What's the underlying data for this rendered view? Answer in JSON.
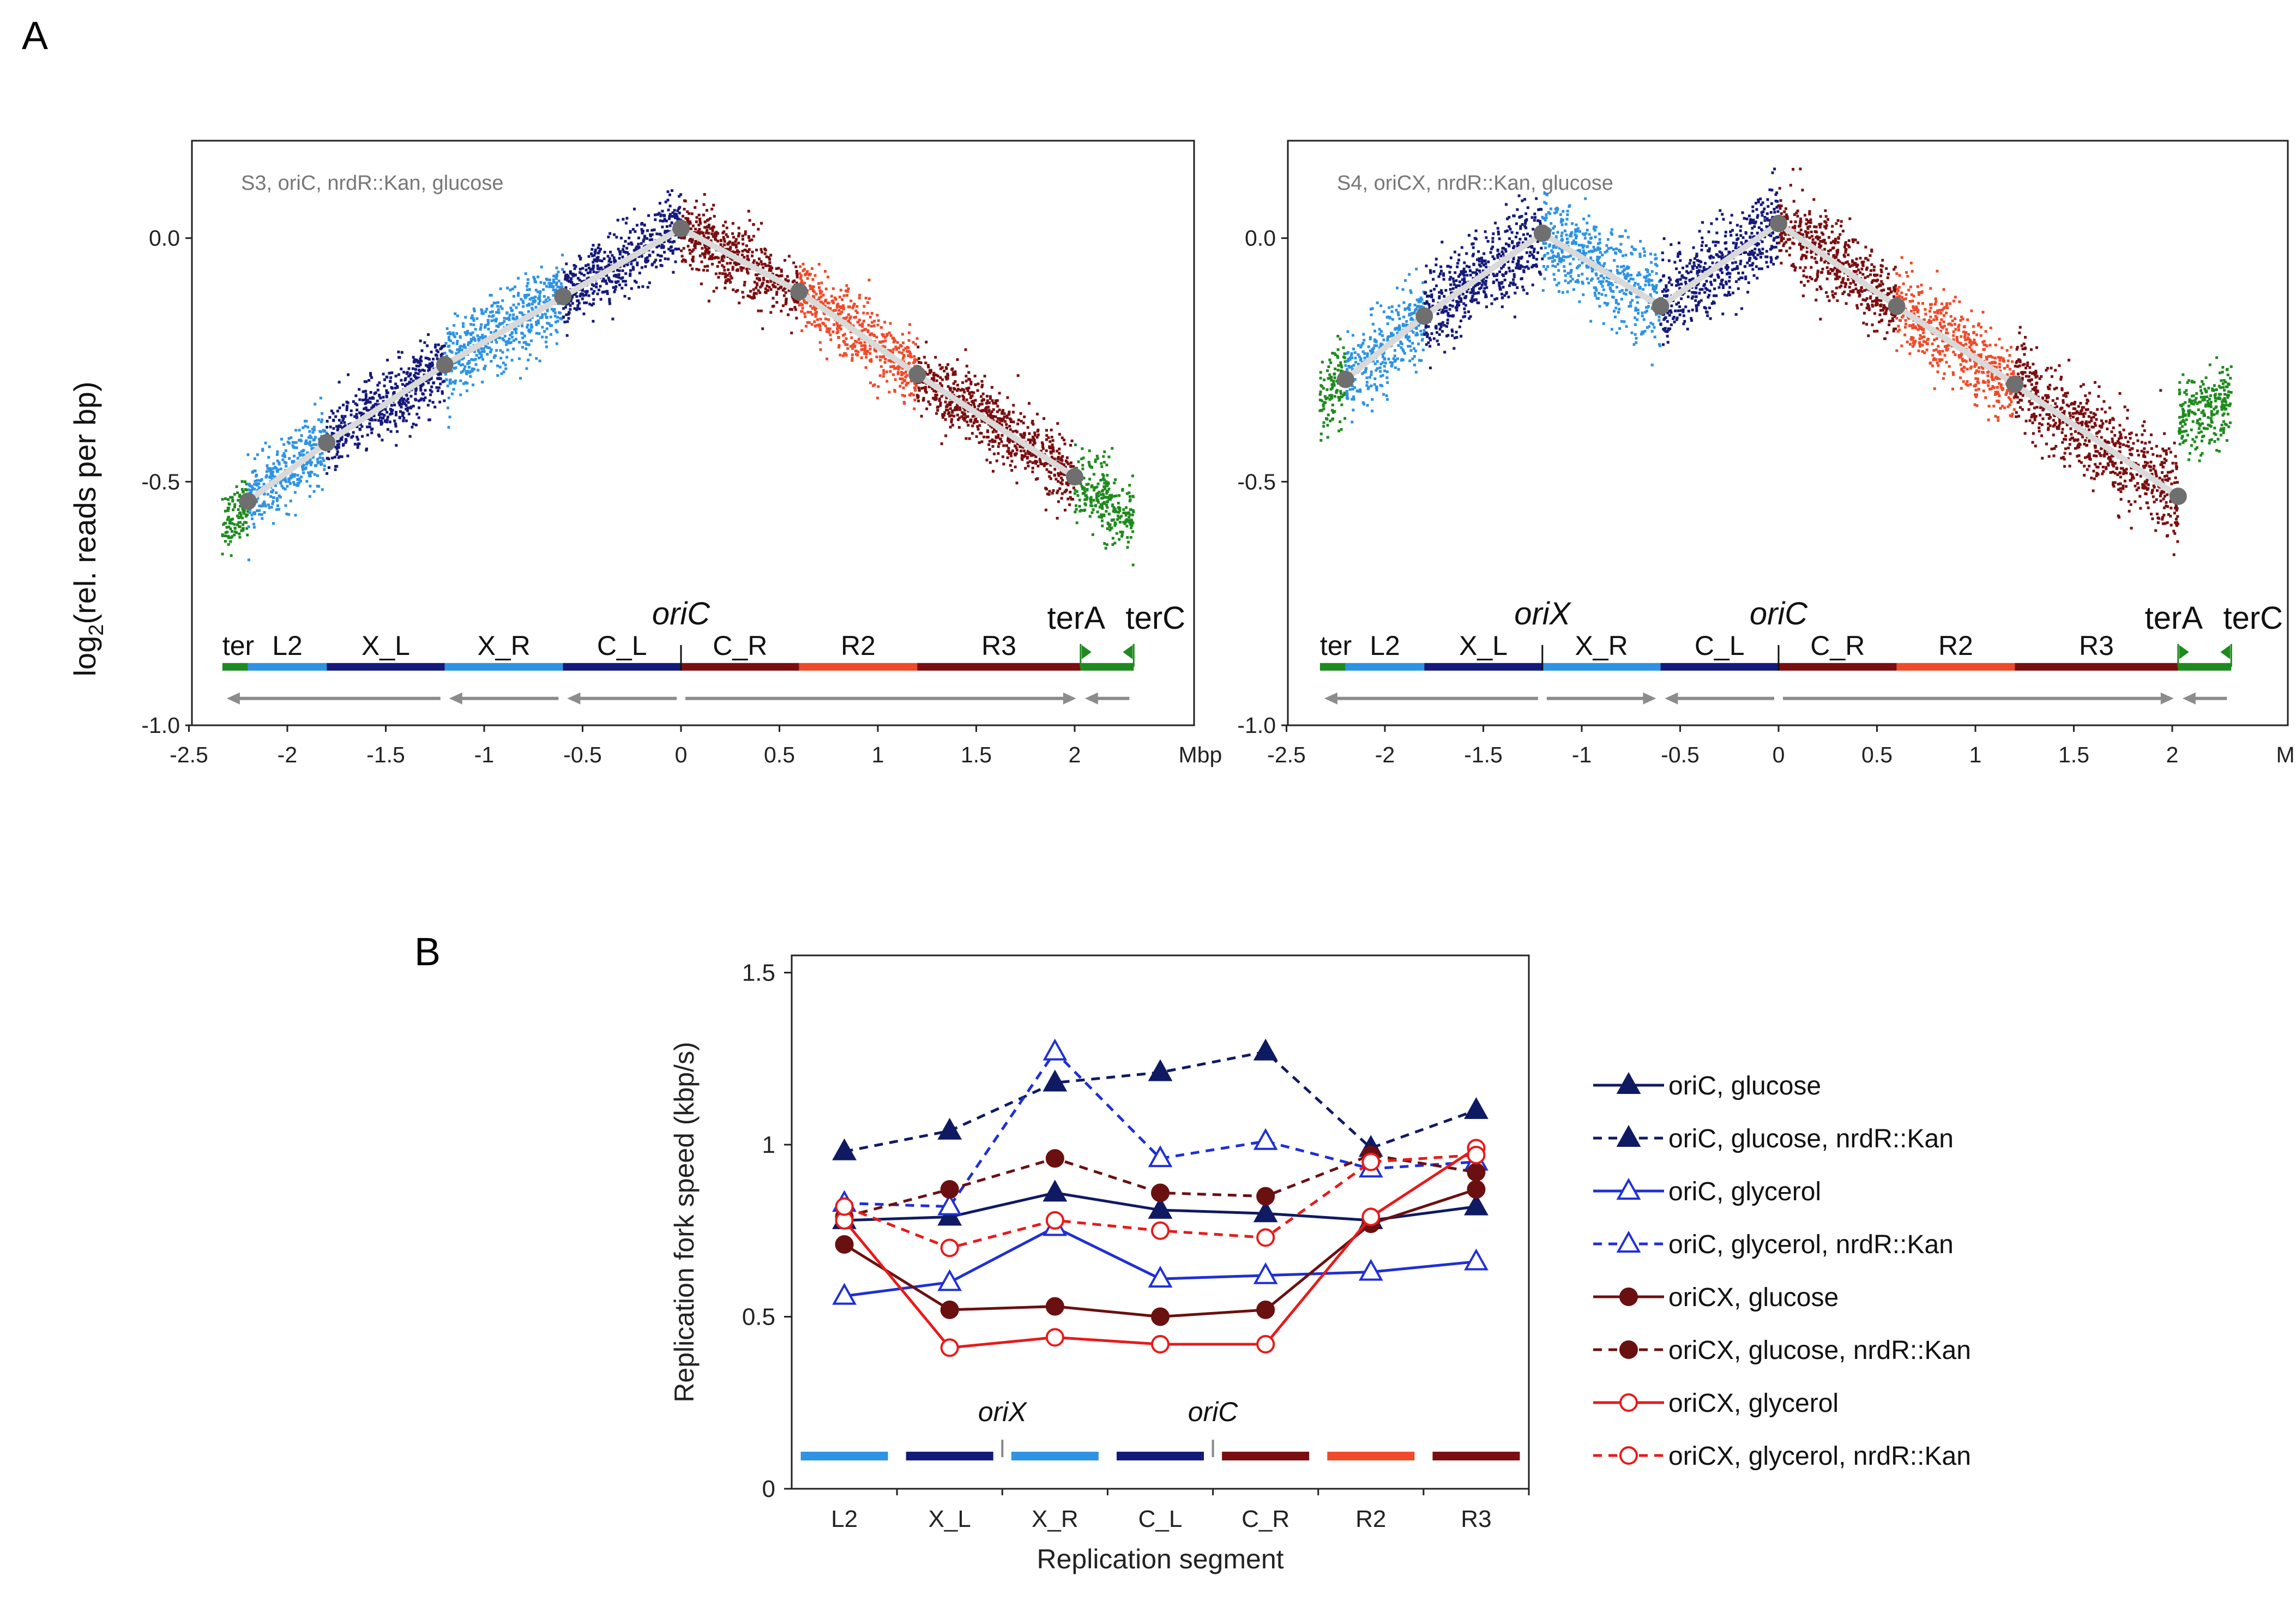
{
  "panel_a_letter": "A",
  "panel_b_letter": "B",
  "colors": {
    "ter": "#1f8a1f",
    "L2": "#2e93e3",
    "X_L": "#141a7a",
    "X_R": "#2e93e3",
    "C_L": "#141a7a",
    "C_R": "#7a0e10",
    "R2": "#ef4a2a",
    "R3": "#7a0e10",
    "fit_line": "#d9d9d9",
    "fit_point": "#6f6f6f",
    "arrow": "#8c8c8c",
    "oriC_series": "#0f1a63",
    "oriC_glycerol": "#1f2fd6",
    "oriCX_series": "#6b1010",
    "oriCX_glycerol": "#e81a1a"
  },
  "chart_data": [
    {
      "type": "scatter",
      "panel": "A-left",
      "annotation": "S3, oriC, nrdR::Kan, glucose",
      "xlabel": "Mbp",
      "ylabel_prefix": "log",
      "ylabel_sub": "2",
      "ylabel_suffix": "(rel. reads per bp)",
      "xlim": [
        -2.5,
        2.6
      ],
      "ylim": [
        -1.0,
        0.2
      ],
      "x_ticks": [
        -2.5,
        -2,
        -1.5,
        -1,
        -0.5,
        0,
        0.5,
        1,
        1.5,
        2
      ],
      "x_tick_labels": [
        "-2.5",
        "-2",
        "-1.5",
        "-1",
        "-0.5",
        "0",
        "0.5",
        "1",
        "1.5",
        "2"
      ],
      "y_ticks": [
        0.0,
        -0.5,
        -1.0
      ],
      "y_tick_labels": [
        "0.0",
        "-0.5",
        "-1.0"
      ],
      "fit_points": [
        [
          -2.2,
          -0.54
        ],
        [
          -1.8,
          -0.42
        ],
        [
          -1.2,
          -0.26
        ],
        [
          -0.6,
          -0.12
        ],
        [
          0.0,
          0.02
        ],
        [
          0.6,
          -0.11
        ],
        [
          1.2,
          -0.28
        ],
        [
          2.0,
          -0.49
        ]
      ],
      "segments": [
        {
          "name": "ter",
          "label": "ter",
          "start": -2.33,
          "end": -2.2
        },
        {
          "name": "L2",
          "label": "L2",
          "start": -2.2,
          "end": -1.8
        },
        {
          "name": "X_L",
          "label": "X_L",
          "start": -1.8,
          "end": -1.2
        },
        {
          "name": "X_R",
          "label": "X_R",
          "start": -1.2,
          "end": -0.6
        },
        {
          "name": "C_L",
          "label": "C_L",
          "start": -0.6,
          "end": 0.0
        },
        {
          "name": "C_R",
          "label": "C_R",
          "start": 0.0,
          "end": 0.6
        },
        {
          "name": "R2",
          "label": "R2",
          "start": 0.6,
          "end": 1.2
        },
        {
          "name": "R3",
          "label": "R3",
          "start": 1.2,
          "end": 2.03
        },
        {
          "name": "ter",
          "label": "",
          "start": 2.03,
          "end": 2.3
        }
      ],
      "origin_labels": [
        {
          "label": "oriC",
          "x": 0.0
        }
      ],
      "ter_labels": [
        {
          "label": "terA",
          "x": 2.03,
          "dir": "right"
        },
        {
          "label": "terC",
          "x": 2.3,
          "dir": "left"
        }
      ],
      "arrows": [
        {
          "from": -1.2,
          "to": -2.33
        },
        {
          "from": -0.6,
          "to": -1.2
        },
        {
          "from": 0.0,
          "to": -0.6
        },
        {
          "from": 0.0,
          "to": 2.03
        },
        {
          "from": 2.3,
          "to": 2.03
        }
      ],
      "scatter_noise": [
        0.03,
        0.035,
        0.035,
        0.04,
        0.035,
        0.035,
        0.035,
        0.035,
        0.04
      ],
      "scatter_profile": [
        {
          "seg": "ter",
          "x0": -2.33,
          "x1": -2.2,
          "y0": -0.6,
          "y1": -0.54
        },
        {
          "seg": "L2",
          "x0": -2.2,
          "x1": -1.8,
          "y0": -0.54,
          "y1": -0.42
        },
        {
          "seg": "X_L",
          "x0": -1.8,
          "x1": -1.2,
          "y0": -0.42,
          "y1": -0.26
        },
        {
          "seg": "X_R",
          "x0": -1.2,
          "x1": -0.6,
          "y0": -0.26,
          "y1": -0.12
        },
        {
          "seg": "C_L",
          "x0": -0.6,
          "x1": 0.0,
          "y0": -0.12,
          "y1": 0.02
        },
        {
          "seg": "C_R",
          "x0": 0.0,
          "x1": 0.6,
          "y0": 0.02,
          "y1": -0.11
        },
        {
          "seg": "R2",
          "x0": 0.6,
          "x1": 1.2,
          "y0": -0.11,
          "y1": -0.28
        },
        {
          "seg": "R3",
          "x0": 1.2,
          "x1": 2.0,
          "y0": -0.28,
          "y1": -0.49
        },
        {
          "seg": "ter",
          "x0": 2.0,
          "x1": 2.3,
          "y0": -0.5,
          "y1": -0.58
        }
      ]
    },
    {
      "type": "scatter",
      "panel": "A-right",
      "annotation": "S4, oriCX, nrdR::Kan, glucose",
      "xlabel": "Mbp",
      "xlim": [
        -2.5,
        2.6
      ],
      "ylim": [
        -1.0,
        0.2
      ],
      "x_ticks": [
        -2.5,
        -2,
        -1.5,
        -1,
        -0.5,
        0,
        0.5,
        1,
        1.5,
        2
      ],
      "x_tick_labels": [
        "-2.5",
        "-2",
        "-1.5",
        "-1",
        "-0.5",
        "0",
        "0.5",
        "1",
        "1.5",
        "2"
      ],
      "y_ticks": [
        0.0,
        -0.5,
        -1.0
      ],
      "y_tick_labels": [
        "0.0",
        "-0.5",
        "-1.0"
      ],
      "fit_points": [
        [
          -2.2,
          -0.29
        ],
        [
          -1.8,
          -0.16
        ],
        [
          -1.2,
          0.01
        ],
        [
          -0.6,
          -0.14
        ],
        [
          0.0,
          0.03
        ],
        [
          0.6,
          -0.14
        ],
        [
          1.2,
          -0.3
        ],
        [
          2.03,
          -0.53
        ]
      ],
      "segments": [
        {
          "name": "ter",
          "label": "ter",
          "start": -2.33,
          "end": -2.2
        },
        {
          "name": "L2",
          "label": "L2",
          "start": -2.2,
          "end": -1.8
        },
        {
          "name": "X_L",
          "label": "X_L",
          "start": -1.8,
          "end": -1.2
        },
        {
          "name": "X_R",
          "label": "X_R",
          "start": -1.2,
          "end": -0.6
        },
        {
          "name": "C_L",
          "label": "C_L",
          "start": -0.6,
          "end": 0.0
        },
        {
          "name": "C_R",
          "label": "C_R",
          "start": 0.0,
          "end": 0.6
        },
        {
          "name": "R2",
          "label": "R2",
          "start": 0.6,
          "end": 1.2
        },
        {
          "name": "R3",
          "label": "R3",
          "start": 1.2,
          "end": 2.03
        },
        {
          "name": "ter",
          "label": "",
          "start": 2.03,
          "end": 2.3
        }
      ],
      "origin_labels": [
        {
          "label": "oriX",
          "x": -1.2
        },
        {
          "label": "oriC",
          "x": 0.0
        }
      ],
      "ter_labels": [
        {
          "label": "terA",
          "x": 2.03,
          "dir": "right"
        },
        {
          "label": "terC",
          "x": 2.3,
          "dir": "left"
        }
      ],
      "arrows": [
        {
          "from": -1.2,
          "to": -2.33
        },
        {
          "from": -1.2,
          "to": -0.6
        },
        {
          "from": 0.0,
          "to": -0.6
        },
        {
          "from": 0.0,
          "to": 2.03
        },
        {
          "from": 2.3,
          "to": 2.03
        }
      ],
      "scatter_noise": [
        0.04,
        0.04,
        0.045,
        0.045,
        0.045,
        0.04,
        0.04,
        0.045,
        0.04
      ],
      "scatter_profile": [
        {
          "seg": "ter",
          "x0": -2.33,
          "x1": -2.2,
          "y0": -0.34,
          "y1": -0.29
        },
        {
          "seg": "L2",
          "x0": -2.2,
          "x1": -1.8,
          "y0": -0.29,
          "y1": -0.16
        },
        {
          "seg": "X_L",
          "x0": -1.8,
          "x1": -1.2,
          "y0": -0.16,
          "y1": 0.01
        },
        {
          "seg": "X_R",
          "x0": -1.2,
          "x1": -0.6,
          "y0": 0.01,
          "y1": -0.14
        },
        {
          "seg": "C_L",
          "x0": -0.6,
          "x1": 0.0,
          "y0": -0.14,
          "y1": 0.03
        },
        {
          "seg": "C_R",
          "x0": 0.0,
          "x1": 0.6,
          "y0": 0.03,
          "y1": -0.14
        },
        {
          "seg": "R2",
          "x0": 0.6,
          "x1": 1.2,
          "y0": -0.14,
          "y1": -0.3
        },
        {
          "seg": "R3",
          "x0": 1.2,
          "x1": 2.03,
          "y0": -0.3,
          "y1": -0.53
        },
        {
          "seg": "ter",
          "x0": 2.03,
          "x1": 2.3,
          "y0": -0.37,
          "y1": -0.34
        }
      ]
    },
    {
      "type": "line",
      "panel": "B",
      "xlabel": "Replication segment",
      "ylabel": "Replication fork speed (kbp/s)",
      "categories": [
        "L2",
        "X_L",
        "X_R",
        "C_L",
        "C_R",
        "R2",
        "R3"
      ],
      "ylim": [
        0,
        1.55
      ],
      "y_ticks": [
        0,
        0.5,
        1,
        1.5
      ],
      "y_tick_labels": [
        "0",
        "0.5",
        "1",
        "1.5"
      ],
      "origin_markers": [
        {
          "label": "oriX",
          "after_index": 1
        },
        {
          "label": "oriC",
          "after_index": 3
        }
      ],
      "segment_bar_colors": [
        "L2",
        "X_L",
        "X_R",
        "C_L",
        "C_R",
        "R2",
        "R3"
      ],
      "series": [
        {
          "name": "oriC, glucose",
          "color": "#0f1a63",
          "dash": false,
          "marker": "triangle",
          "filled": true,
          "values": [
            0.78,
            0.79,
            0.86,
            0.81,
            0.8,
            0.78,
            0.82
          ]
        },
        {
          "name": "oriC, glucose, nrdR::Kan",
          "color": "#0f1a63",
          "dash": true,
          "marker": "triangle",
          "filled": true,
          "values": [
            0.98,
            1.04,
            1.18,
            1.21,
            1.27,
            0.99,
            1.1
          ]
        },
        {
          "name": "oriC, glycerol",
          "color": "#1f2fd6",
          "dash": false,
          "marker": "triangle",
          "filled": false,
          "values": [
            0.56,
            0.6,
            0.76,
            0.61,
            0.62,
            0.63,
            0.66
          ]
        },
        {
          "name": "oriC, glycerol, nrdR::Kan",
          "color": "#1f2fd6",
          "dash": true,
          "marker": "triangle",
          "filled": false,
          "values": [
            0.83,
            0.82,
            1.27,
            0.96,
            1.01,
            0.93,
            0.95
          ]
        },
        {
          "name": "oriCX, glucose",
          "color": "#6b1010",
          "dash": false,
          "marker": "circle",
          "filled": true,
          "values": [
            0.71,
            0.52,
            0.53,
            0.5,
            0.52,
            0.77,
            0.87
          ]
        },
        {
          "name": "oriCX, glucose, nrdR::Kan",
          "color": "#6b1010",
          "dash": true,
          "marker": "circle",
          "filled": true,
          "values": [
            0.79,
            0.87,
            0.96,
            0.86,
            0.85,
            0.97,
            0.92
          ]
        },
        {
          "name": "oriCX, glycerol",
          "color": "#e81a1a",
          "dash": false,
          "marker": "circle",
          "filled": false,
          "values": [
            0.78,
            0.41,
            0.44,
            0.42,
            0.42,
            0.79,
            0.99
          ]
        },
        {
          "name": "oriCX, glycerol, nrdR::Kan",
          "color": "#e81a1a",
          "dash": true,
          "marker": "circle",
          "filled": false,
          "values": [
            0.82,
            0.7,
            0.78,
            0.75,
            0.73,
            0.95,
            0.97
          ]
        }
      ]
    }
  ]
}
